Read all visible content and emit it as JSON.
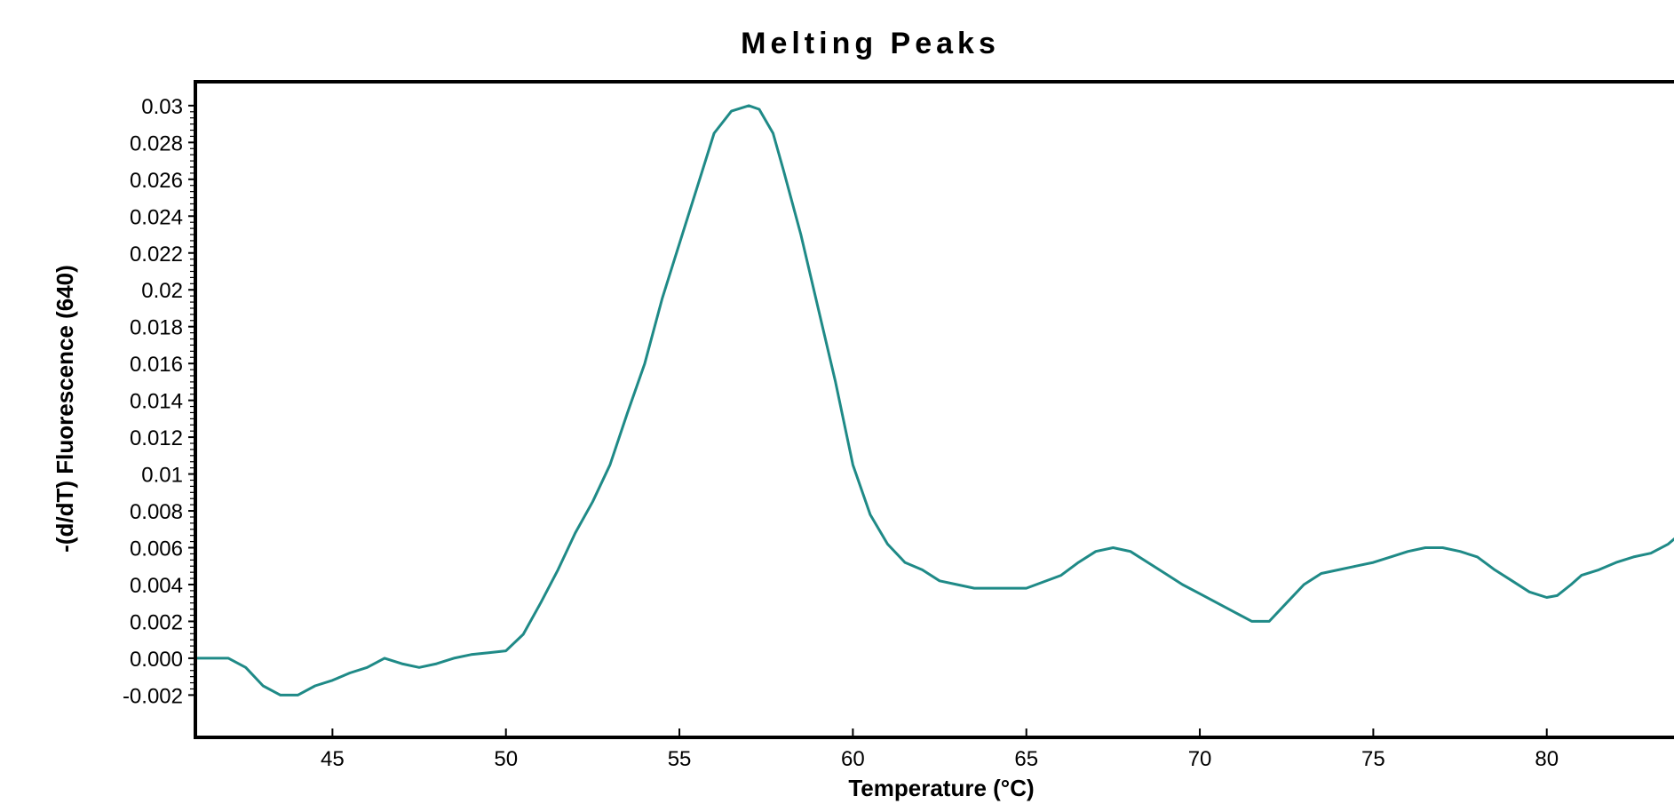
{
  "chart_data": {
    "type": "line",
    "title": "Melting Peaks",
    "xlabel": "Temperature (°C)",
    "ylabel": "-(d/dT) Fluorescence (640)",
    "xlim": [
      41.1,
      84.0
    ],
    "ylim": [
      -0.0042,
      0.0312
    ],
    "xticks": [
      45,
      50,
      55,
      60,
      65,
      70,
      75,
      80
    ],
    "xtick_labels": [
      "45",
      "50",
      "55",
      "60",
      "65",
      "70",
      "75",
      "80"
    ],
    "yticks": [
      0.03,
      0.028,
      0.026,
      0.024,
      0.022,
      0.02,
      0.018,
      0.016,
      0.014,
      0.012,
      0.01,
      0.008,
      0.006,
      0.004,
      0.002,
      0.0,
      -0.002
    ],
    "ytick_labels": [
      "0.03",
      "0.028",
      "0.026",
      "0.024",
      "0.022",
      "0.02",
      "0.018",
      "0.016",
      "0.014",
      "0.012",
      "0.01",
      "0.008",
      "0.006",
      "0.004",
      "0.002",
      "0.000",
      "-0.002"
    ],
    "grid": false,
    "series": [
      {
        "color": "#1f8a87",
        "x": [
          41.1,
          42.0,
          42.5,
          43.0,
          43.5,
          44.0,
          44.5,
          45.0,
          45.5,
          46.0,
          46.5,
          47.0,
          47.5,
          48.0,
          48.5,
          49.0,
          49.5,
          50.0,
          50.5,
          51.0,
          51.5,
          52.0,
          52.5,
          53.0,
          53.5,
          54.0,
          54.5,
          55.0,
          55.5,
          56.0,
          56.5,
          57.0,
          57.3,
          57.7,
          58.0,
          58.5,
          59.0,
          59.5,
          60.0,
          60.5,
          61.0,
          61.5,
          62.0,
          62.5,
          63.0,
          63.5,
          64.0,
          65.0,
          66.0,
          66.5,
          67.0,
          67.5,
          68.0,
          68.5,
          69.0,
          69.5,
          70.0,
          70.5,
          71.0,
          71.5,
          72.0,
          72.5,
          73.0,
          73.5,
          74.0,
          74.5,
          75.0,
          75.5,
          76.0,
          76.5,
          77.0,
          77.5,
          78.0,
          78.5,
          79.0,
          79.5,
          80.0,
          80.3,
          80.7,
          81.0,
          81.5,
          82.0,
          82.5,
          83.0,
          83.5,
          84.0
        ],
        "y": [
          0.0,
          0.0,
          -0.0005,
          -0.0015,
          -0.002,
          -0.002,
          -0.0015,
          -0.0012,
          -0.0008,
          -0.0005,
          0.0,
          -0.0003,
          -0.0005,
          -0.0003,
          0.0,
          0.0002,
          0.0003,
          0.0004,
          0.0013,
          0.003,
          0.0048,
          0.0068,
          0.0085,
          0.0105,
          0.0133,
          0.016,
          0.0195,
          0.0225,
          0.0255,
          0.0285,
          0.0297,
          0.03,
          0.0298,
          0.0285,
          0.0265,
          0.023,
          0.019,
          0.015,
          0.0105,
          0.0078,
          0.0062,
          0.0052,
          0.0048,
          0.0042,
          0.004,
          0.0038,
          0.0038,
          0.0038,
          0.0045,
          0.0052,
          0.0058,
          0.006,
          0.0058,
          0.0052,
          0.0046,
          0.004,
          0.0035,
          0.003,
          0.0025,
          0.002,
          0.002,
          0.003,
          0.004,
          0.0046,
          0.0048,
          0.005,
          0.0052,
          0.0055,
          0.0058,
          0.006,
          0.006,
          0.0058,
          0.0055,
          0.0048,
          0.0042,
          0.0036,
          0.0033,
          0.0034,
          0.004,
          0.0045,
          0.0048,
          0.0052,
          0.0055,
          0.0057,
          0.0062,
          0.007
        ]
      }
    ]
  }
}
